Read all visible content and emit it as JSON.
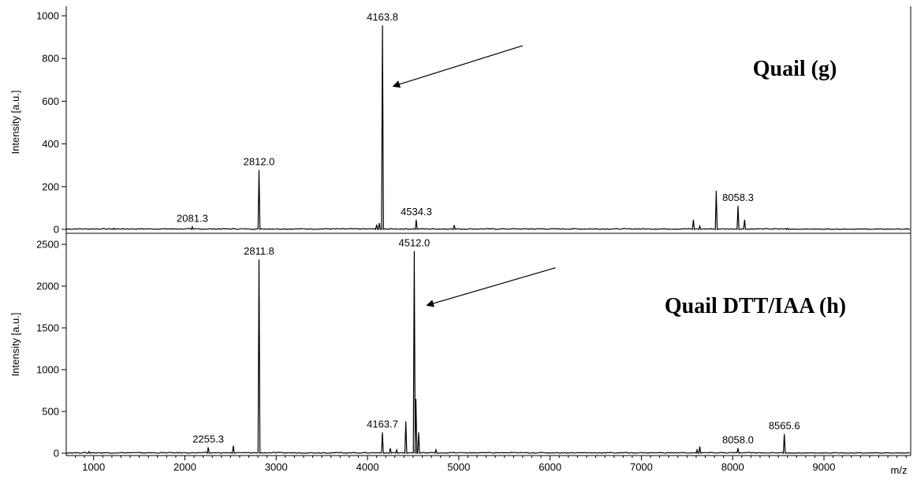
{
  "chart_data": [
    {
      "type": "line",
      "title": "Quail (g)",
      "ylabel": "Intensity [a.u.]",
      "xlabel": "",
      "xlim": [
        700,
        9950
      ],
      "ylim": [
        0,
        1030
      ],
      "yticks": [
        0,
        200,
        400,
        600,
        800,
        1000
      ],
      "baseline_noise": 4,
      "peaks": [
        {
          "x": 1220,
          "y": 5
        },
        {
          "x": 2081.3,
          "y": 12,
          "label": "2081.3"
        },
        {
          "x": 2812.0,
          "y": 278,
          "label": "2812.0"
        },
        {
          "x": 4100,
          "y": 22
        },
        {
          "x": 4130,
          "y": 30
        },
        {
          "x": 4163.8,
          "y": 955,
          "label": "4163.8"
        },
        {
          "x": 4534.3,
          "y": 45,
          "label": "4534.3"
        },
        {
          "x": 4950,
          "y": 20
        },
        {
          "x": 7570,
          "y": 45
        },
        {
          "x": 7640,
          "y": 15
        },
        {
          "x": 7820,
          "y": 180
        },
        {
          "x": 8058.3,
          "y": 110,
          "label": "8058.3"
        },
        {
          "x": 8130,
          "y": 45
        },
        {
          "x": 8600,
          "y": 5
        }
      ],
      "annotations": [
        {
          "type": "arrow",
          "from": [
            5700,
            860
          ],
          "to": [
            4280,
            670
          ]
        }
      ]
    },
    {
      "type": "line",
      "title": "Quail DTT/IAA (h)",
      "ylabel": "Intensity [a.u.]",
      "xlabel": "m/z",
      "xlim": [
        700,
        9950
      ],
      "ylim": [
        0,
        2550
      ],
      "yticks": [
        0,
        500,
        1000,
        1500,
        2000,
        2500
      ],
      "xticks": [
        1000,
        2000,
        3000,
        4000,
        5000,
        6000,
        7000,
        8000,
        9000
      ],
      "baseline_noise": 10,
      "peaks": [
        {
          "x": 950,
          "y": 20
        },
        {
          "x": 2255.3,
          "y": 70,
          "label": "2255.3"
        },
        {
          "x": 2530,
          "y": 90
        },
        {
          "x": 2811.8,
          "y": 2320,
          "label": "2811.8"
        },
        {
          "x": 4163.7,
          "y": 250,
          "label": "4163.7"
        },
        {
          "x": 4250,
          "y": 60
        },
        {
          "x": 4320,
          "y": 40
        },
        {
          "x": 4420,
          "y": 380
        },
        {
          "x": 4512.0,
          "y": 2420,
          "label": "4512.0"
        },
        {
          "x": 4530,
          "y": 650
        },
        {
          "x": 4560,
          "y": 250
        },
        {
          "x": 4750,
          "y": 40
        },
        {
          "x": 7610,
          "y": 40
        },
        {
          "x": 7640,
          "y": 80
        },
        {
          "x": 8058.0,
          "y": 60,
          "label": "8058.0"
        },
        {
          "x": 8565.6,
          "y": 230,
          "label": "8565.6"
        }
      ],
      "annotations": [
        {
          "type": "arrow",
          "from": [
            6060,
            2220
          ],
          "to": [
            4650,
            1770
          ]
        }
      ]
    }
  ]
}
